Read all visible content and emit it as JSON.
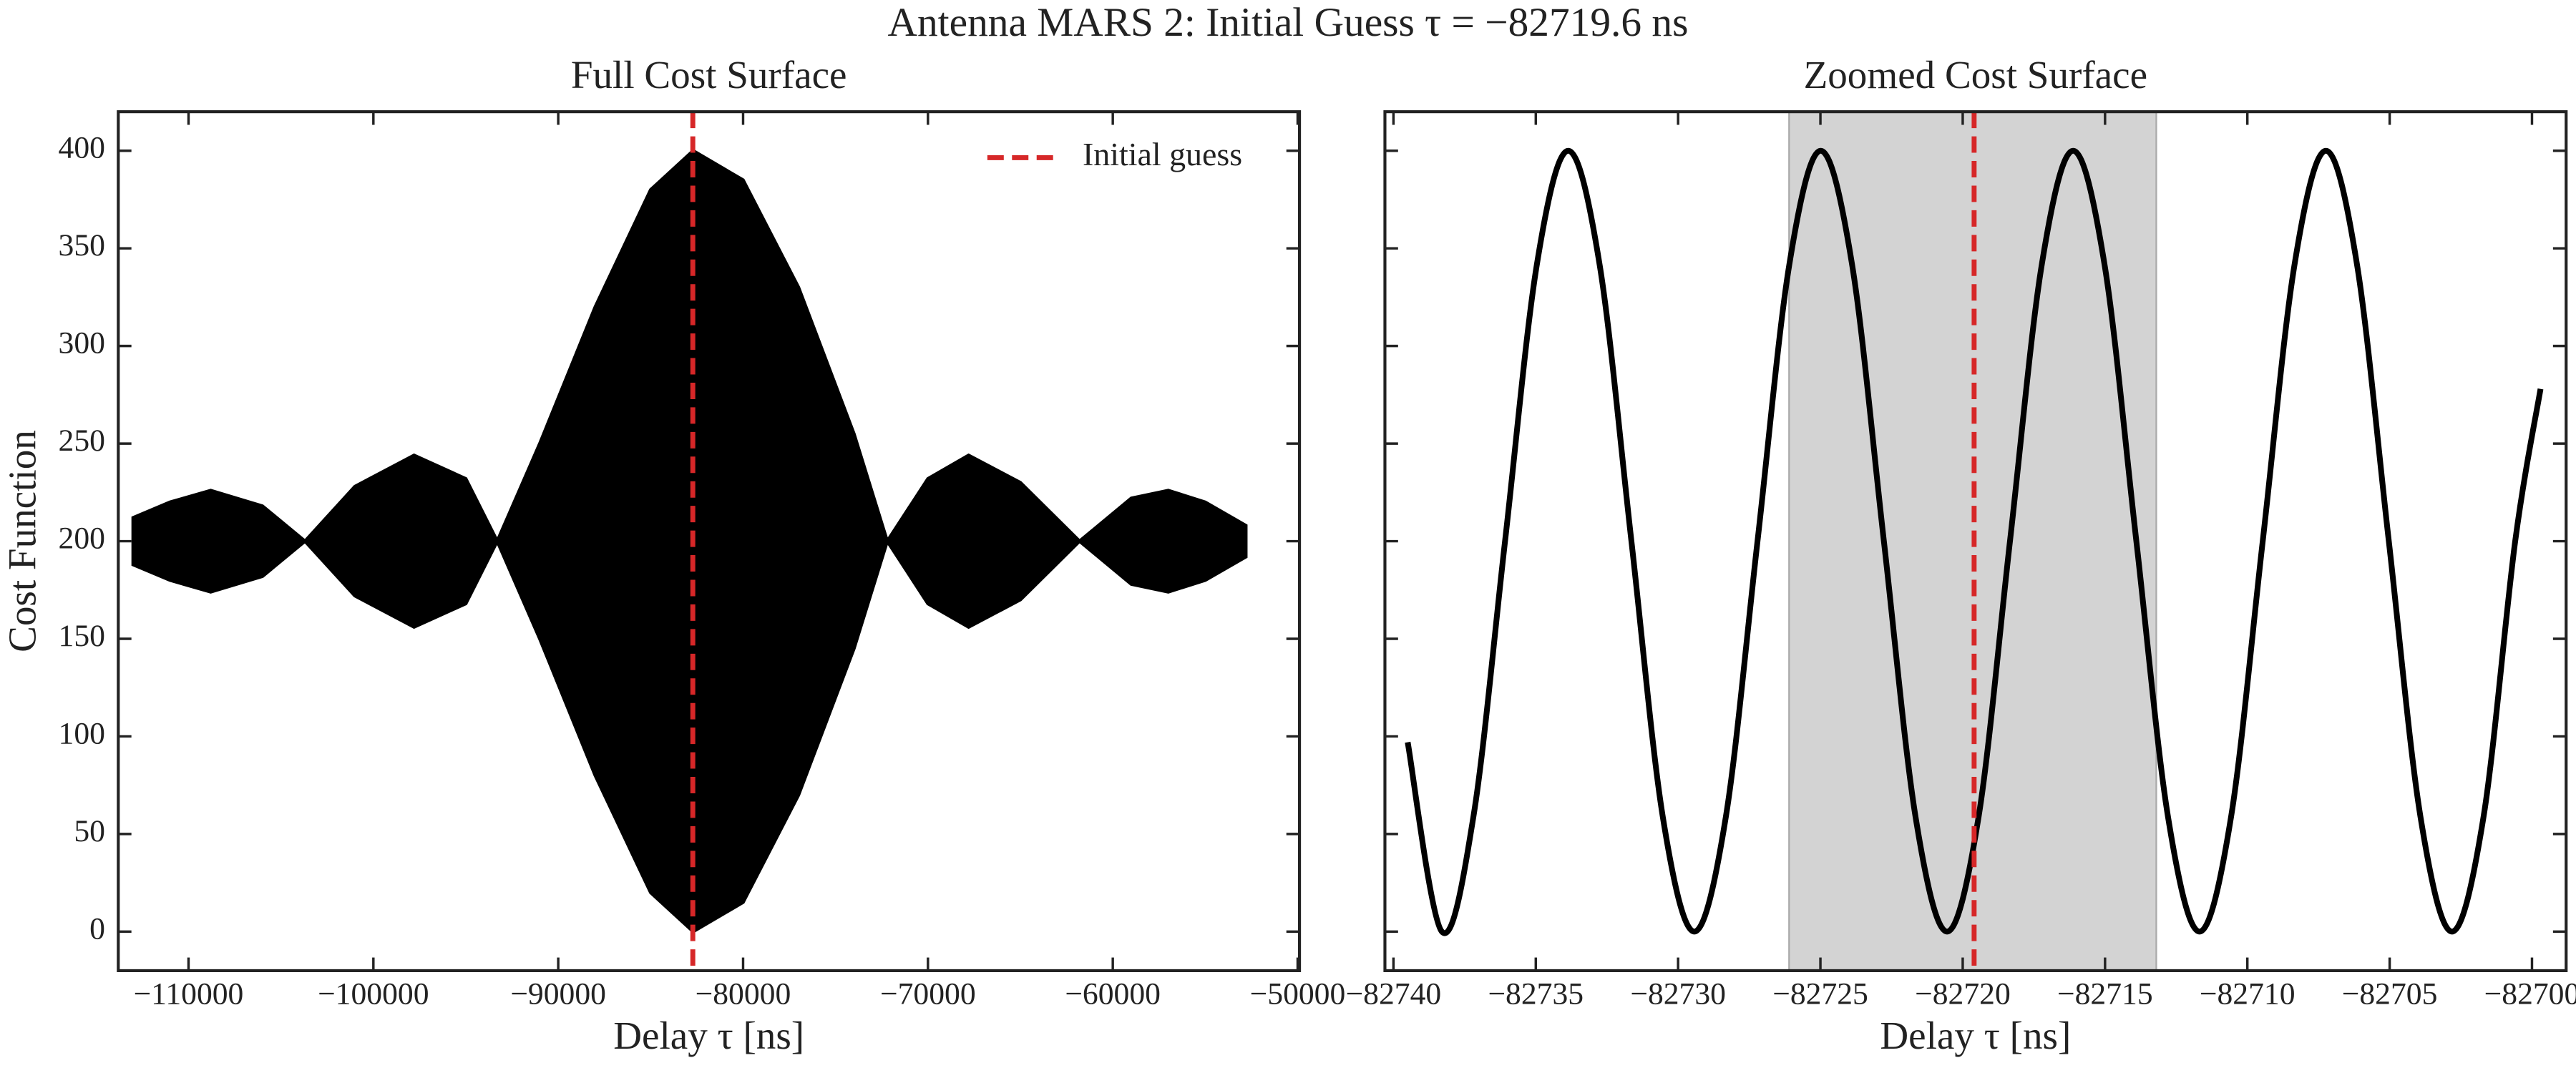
{
  "title": "Antenna MARS 2: Initial Guess τ = −82719.6 ns",
  "chart_data": [
    {
      "type": "band",
      "title": "Full Cost Surface",
      "xlabel": "Delay τ [ns]",
      "ylabel": "Cost Function",
      "color": "#000000",
      "x": [
        -113000,
        -111000,
        -108800,
        -106000,
        -103700,
        -101000,
        -97800,
        -95000,
        -93300,
        -91000,
        -88000,
        -85000,
        -82700,
        -80000,
        -77000,
        -74000,
        -72200,
        -70000,
        -67800,
        -65000,
        -61800,
        -59000,
        -57000,
        -55000,
        -52800
      ],
      "upper": [
        212,
        220,
        226,
        218,
        200,
        228,
        244,
        232,
        200,
        250,
        320,
        380,
        400,
        385,
        330,
        255,
        200,
        232,
        244,
        230,
        200,
        222,
        226,
        220,
        208
      ],
      "lower": [
        188,
        180,
        174,
        182,
        200,
        172,
        156,
        168,
        200,
        150,
        80,
        20,
        0,
        15,
        70,
        145,
        200,
        168,
        156,
        170,
        200,
        178,
        174,
        180,
        192
      ],
      "vline": {
        "value": -82719.6,
        "color": "#d62728",
        "label": "Initial guess"
      },
      "legend": "upper right",
      "xlim": [
        -113800,
        -49900
      ],
      "ylim": [
        -20,
        420
      ],
      "xticks": [
        {
          "value": -110000,
          "label": "−110000"
        },
        {
          "value": -100000,
          "label": "−100000"
        },
        {
          "value": -90000,
          "label": "−90000"
        },
        {
          "value": -80000,
          "label": "−80000"
        },
        {
          "value": -70000,
          "label": "−70000"
        },
        {
          "value": -60000,
          "label": "−60000"
        },
        {
          "value": -50000,
          "label": "−50000"
        }
      ],
      "yticks": [
        0,
        50,
        100,
        150,
        200,
        250,
        300,
        350,
        400
      ]
    },
    {
      "type": "line",
      "title": "Zoomed Cost Surface",
      "xlabel": "Delay τ [ns]",
      "color": "#000000",
      "x": [
        -82739.5,
        -82738.3,
        -82737.19,
        -82736.08,
        -82734.97,
        -82733.86,
        -82732.75,
        -82731.64,
        -82730.54,
        -82729.43,
        -82728.32,
        -82727.21,
        -82726.1,
        -82724.99,
        -82723.88,
        -82722.77,
        -82721.66,
        -82720.55,
        -82719.44,
        -82718.34,
        -82717.23,
        -82716.12,
        -82715.01,
        -82713.9,
        -82712.79,
        -82711.68,
        -82710.57,
        -82709.46,
        -82708.35,
        -82707.24,
        -82706.14,
        -82705.03,
        -82703.92,
        -82702.81,
        -82701.7,
        -82700.59,
        -82699.7
      ],
      "values": [
        97,
        0,
        59,
        200,
        341,
        400,
        341,
        200,
        59,
        0,
        59,
        200,
        341,
        400,
        341,
        200,
        59,
        0,
        59,
        200,
        341,
        400,
        341,
        200,
        59,
        0,
        59,
        200,
        341,
        400,
        341,
        200,
        59,
        0,
        59,
        200,
        278
      ],
      "span": [
        -82726.1,
        -82713.2
      ],
      "span_color": "#d3d3d3",
      "vline": {
        "value": -82719.6,
        "color": "#d62728"
      },
      "xlim": [
        -82740.3,
        -82698.8
      ],
      "ylim": [
        -20,
        420
      ],
      "xticks": [
        {
          "value": -82740,
          "label": "−82740"
        },
        {
          "value": -82735,
          "label": "−82735"
        },
        {
          "value": -82730,
          "label": "−82730"
        },
        {
          "value": -82725,
          "label": "−82725"
        },
        {
          "value": -82720,
          "label": "−82720"
        },
        {
          "value": -82715,
          "label": "−82715"
        },
        {
          "value": -82710,
          "label": "−82710"
        },
        {
          "value": -82705,
          "label": "−82705"
        },
        {
          "value": -82700,
          "label": "−82700"
        }
      ],
      "yticks": [
        0,
        50,
        100,
        150,
        200,
        250,
        300,
        350,
        400
      ],
      "ytick_labels": false
    }
  ]
}
